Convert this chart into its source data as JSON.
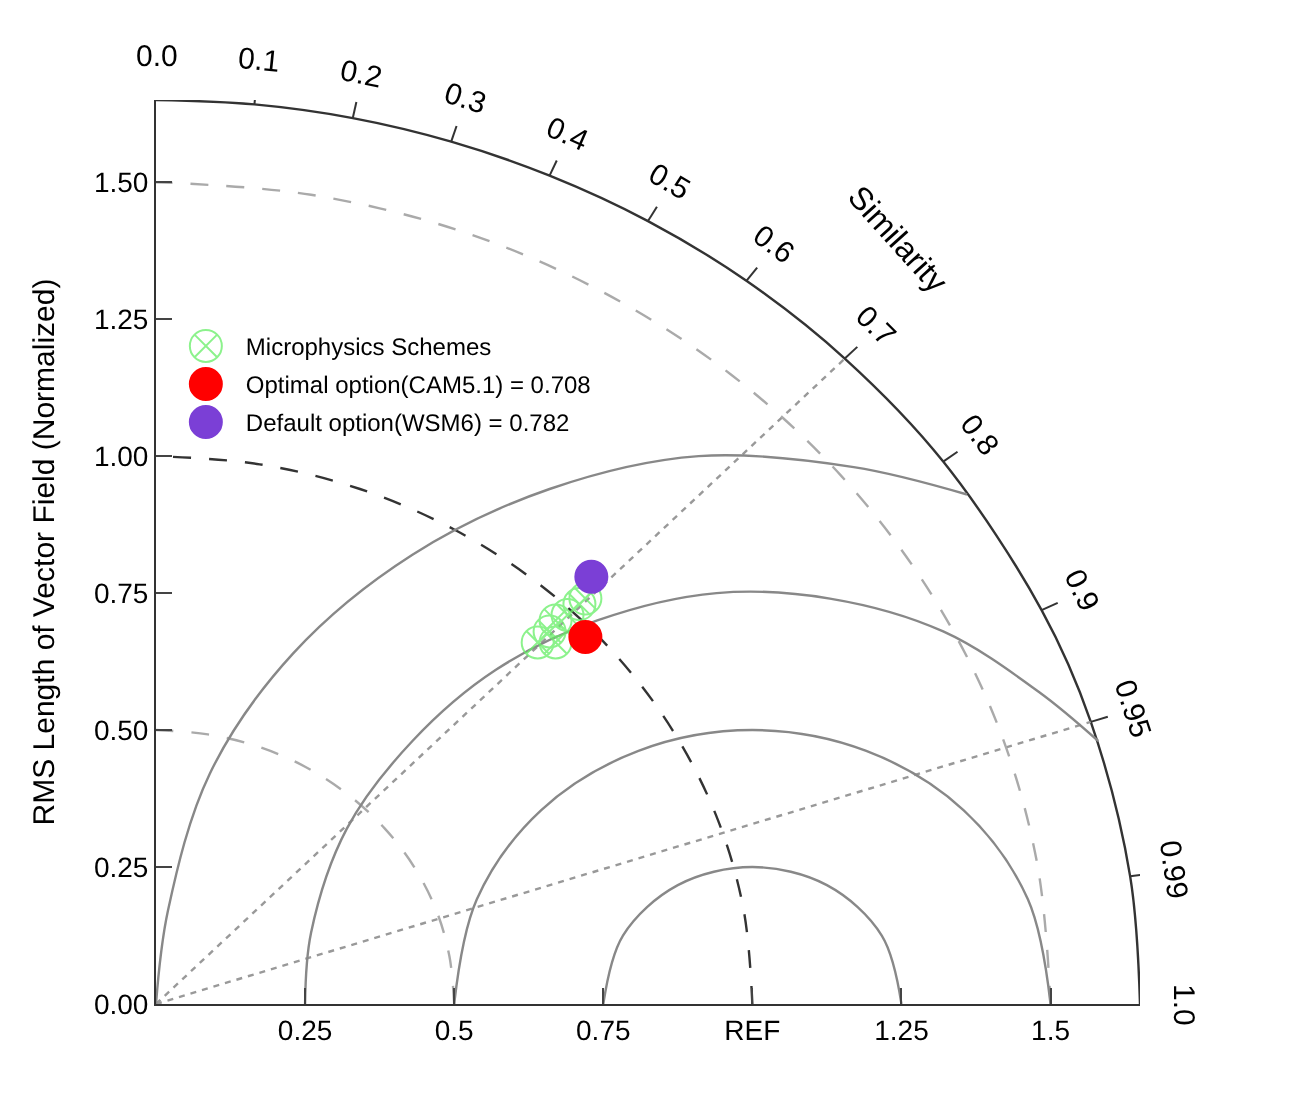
{
  "chart_data": {
    "type": "scatter",
    "ylabel": "RMS Length of Vector Field (Normalized)",
    "xlim": [
      0,
      1.65
    ],
    "ylim": [
      0,
      1.65
    ],
    "xticks": [
      0.25,
      0.5,
      0.75,
      {
        "value": 1.0,
        "label": "REF"
      },
      1.25,
      1.5
    ],
    "yticks": [
      {
        "value": 0,
        "label": "0.00"
      },
      0.25,
      {
        "value": 0.5,
        "label": "0.50"
      },
      0.75,
      {
        "value": 1.0,
        "label": "1.00"
      },
      1.25,
      {
        "value": 1.5,
        "label": "1.50"
      }
    ],
    "legend": "top left",
    "marker": "circle",
    "series": [
      {
        "name": "Microphysics Schemes",
        "color": "#66ee66",
        "marker": "cross",
        "x": [
          null,
          0.72,
          0.71,
          0.69,
          0.67,
          0.66,
          0.64,
          0.67
        ],
        "values": [
          null,
          0.74,
          0.73,
          0.71,
          0.7,
          0.68,
          0.66,
          0.66
        ]
      },
      {
        "name": "Optimal option(CAM5.1) = 0.708",
        "color": "#ff0000",
        "x": [
          0.72
        ],
        "values": [
          0.67
        ]
      },
      {
        "name": "Default option(WSM6) = 0.782",
        "color": "#7b3fd6",
        "x": [
          0.73
        ],
        "values": [
          0.78
        ]
      },
      {
        "type": "line",
        "color": "#333333",
        "line_style": "solid",
        "marker": "none",
        "x": [
          0,
          0.165,
          0.33,
          0.495,
          0.66,
          0.825,
          0.99,
          1.155,
          1.32,
          1.485,
          1.5675,
          1.6335,
          1.65
        ],
        "values": [
          1.65,
          1.642,
          1.617,
          1.574,
          1.512,
          1.429,
          1.32,
          1.178,
          0.99,
          0.719,
          0.515,
          0.233,
          0
        ]
      },
      {
        "type": "line",
        "color": "#999999",
        "line_style": "dotted",
        "marker": "none",
        "x": [
          0,
          1.155
        ],
        "values": [
          0,
          1.178
        ]
      },
      {
        "type": "line",
        "color": "#999999",
        "line_style": "dotted",
        "marker": "none",
        "x": [
          0,
          1.5675
        ],
        "values": [
          0,
          0.515
        ]
      },
      {
        "type": "line",
        "color": "#aaaaaa",
        "line_style": "dashed",
        "marker": "none",
        "x": [
          0.5,
          0.492,
          0.47,
          0.433,
          0.383,
          0.321,
          0.25,
          0.171,
          0.087,
          0
        ],
        "values": [
          0,
          0.087,
          0.171,
          0.25,
          0.321,
          0.383,
          0.433,
          0.47,
          0.492,
          0.5
        ]
      },
      {
        "type": "line",
        "color": "#333333",
        "line_style": "dashed",
        "marker": "none",
        "x": [
          1,
          0.985,
          0.94,
          0.866,
          0.766,
          0.643,
          0.5,
          0.342,
          0.174,
          0
        ],
        "values": [
          0,
          0.174,
          0.342,
          0.5,
          0.643,
          0.766,
          0.866,
          0.94,
          0.985,
          1
        ]
      },
      {
        "type": "line",
        "color": "#aaaaaa",
        "line_style": "dashed",
        "marker": "none",
        "x": [
          1.5,
          1.477,
          1.41,
          1.299,
          1.149,
          0.964,
          0.75,
          0.513,
          0.26,
          0
        ],
        "values": [
          0,
          0.26,
          0.513,
          0.75,
          0.964,
          1.149,
          1.299,
          1.41,
          1.477,
          1.5
        ]
      },
      {
        "type": "line",
        "color": "#888888",
        "line_style": "solid",
        "marker": "none",
        "x": [
          1.25,
          1.217,
          1.125,
          1,
          0.875,
          0.783,
          0.75
        ],
        "values": [
          0,
          0.125,
          0.217,
          0.25,
          0.217,
          0.125,
          0
        ]
      },
      {
        "type": "line",
        "color": "#888888",
        "line_style": "solid",
        "marker": "none",
        "x": [
          1.5,
          1.462,
          1.354,
          1.191,
          1,
          0.809,
          0.646,
          0.538,
          0.5
        ],
        "values": [
          0,
          0.191,
          0.354,
          0.462,
          0.5,
          0.462,
          0.354,
          0.191,
          0
        ]
      },
      {
        "type": "line",
        "color": "#888888",
        "line_style": "solid",
        "marker": "none",
        "x": [
          1.58,
          1.48,
          1.32,
          1.13,
          0.94,
          0.74,
          0.57,
          0.43,
          0.32,
          0.26,
          0.25
        ],
        "values": [
          0.48,
          0.57,
          0.68,
          0.74,
          0.75,
          0.7,
          0.61,
          0.48,
          0.32,
          0.13,
          0
        ]
      },
      {
        "type": "line",
        "color": "#888888",
        "line_style": "solid",
        "marker": "none",
        "x": [
          1.36,
          1.17,
          0.91,
          0.66,
          0.43,
          0.23,
          0.09,
          0.02,
          0
        ],
        "values": [
          0.93,
          0.98,
          1.0,
          0.94,
          0.82,
          0.64,
          0.42,
          0.17,
          0
        ]
      }
    ],
    "annotations": [
      "Similarity",
      {
        "text": "0.0",
        "x": 0,
        "y": 1.65
      },
      {
        "text": "0.1",
        "x": 0.165,
        "y": 1.642
      },
      {
        "text": "0.2",
        "x": 0.33,
        "y": 1.617
      },
      {
        "text": "0.3",
        "x": 0.495,
        "y": 1.574
      },
      {
        "text": "0.4",
        "x": 0.66,
        "y": 1.512
      },
      {
        "text": "0.5",
        "x": 0.825,
        "y": 1.429
      },
      {
        "text": "0.6",
        "x": 0.99,
        "y": 1.32
      },
      {
        "text": "0.7",
        "x": 1.155,
        "y": 1.178
      },
      {
        "text": "0.8",
        "x": 1.32,
        "y": 0.99
      },
      {
        "text": "0.9",
        "x": 1.485,
        "y": 0.719
      },
      {
        "text": "0.95",
        "x": 1.5675,
        "y": 0.515
      },
      {
        "text": "0.99",
        "x": 1.6335,
        "y": 0.233
      },
      {
        "text": "1.0",
        "x": 1.65,
        "y": 0
      }
    ]
  }
}
